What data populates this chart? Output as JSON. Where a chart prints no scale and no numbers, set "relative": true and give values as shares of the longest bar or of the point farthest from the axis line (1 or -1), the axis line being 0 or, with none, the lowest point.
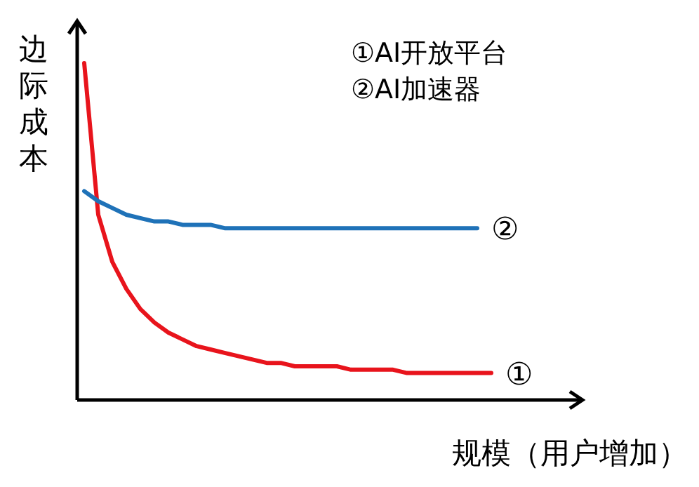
{
  "chart_data": {
    "type": "line",
    "relative": true,
    "xlabel": "规模（用户增加）",
    "ylabel": "边际成本",
    "annotations": [
      "①AI开放平台",
      "②AI加速器"
    ],
    "legend": false,
    "grid": false,
    "categories": [
      null,
      null,
      null,
      null,
      null,
      null,
      null,
      null,
      null,
      null,
      null,
      null,
      null,
      null,
      null,
      null,
      null,
      null,
      null,
      null,
      null,
      null,
      null,
      null,
      null,
      null,
      null,
      null,
      null,
      null
    ],
    "series": [
      {
        "name": "①",
        "color": "#e8141c",
        "values": [
          1.0,
          0.55,
          0.41,
          0.33,
          0.27,
          0.23,
          0.2,
          0.18,
          0.16,
          0.15,
          0.14,
          0.13,
          0.12,
          0.11,
          0.11,
          0.1,
          0.1,
          0.1,
          0.1,
          0.09,
          0.09,
          0.09,
          0.09,
          0.08,
          0.08,
          0.08,
          0.08,
          0.08,
          0.08,
          0.08
        ]
      },
      {
        "name": "②",
        "color": "#1f72b8",
        "values": [
          0.62,
          0.59,
          0.57,
          0.55,
          0.54,
          0.53,
          0.53,
          0.52,
          0.52,
          0.52,
          0.51,
          0.51,
          0.51,
          0.51,
          0.51,
          0.51,
          0.51,
          0.51,
          0.51,
          0.51,
          0.51,
          0.51,
          0.51,
          0.51,
          0.51,
          0.51,
          0.51,
          0.51,
          0.51,
          null
        ]
      }
    ]
  }
}
